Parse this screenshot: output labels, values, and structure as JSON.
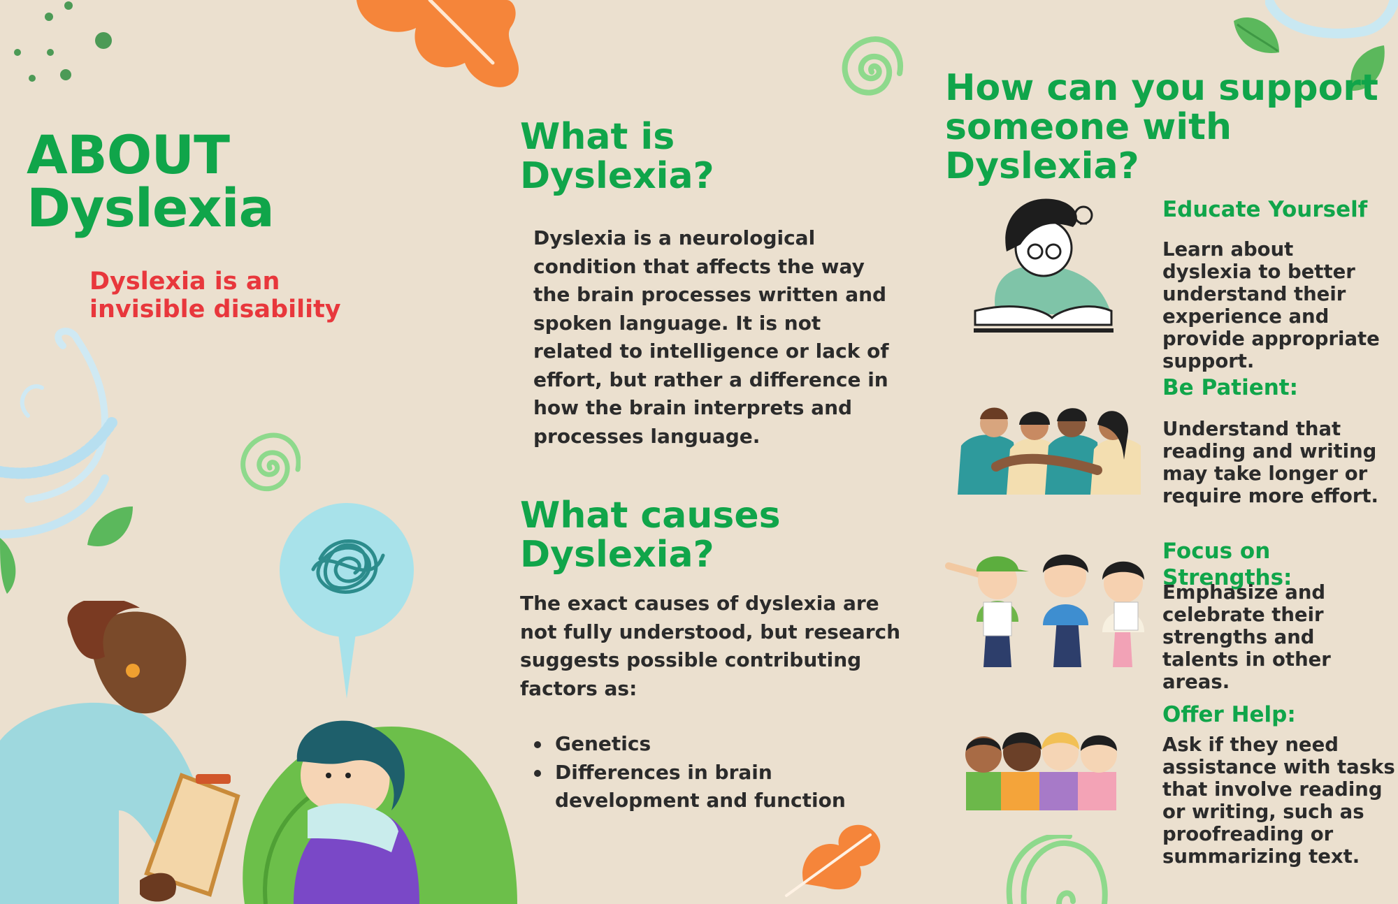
{
  "left_panel": {
    "title_line1": "ABOUT",
    "title_line2": "Dyslexia",
    "subtitle": "Dyslexia is an invisible disability"
  },
  "middle_panel": {
    "what_heading_line1": "What is",
    "what_heading_line2": "Dyslexia?",
    "what_body": "Dyslexia is a neurological condition that affects the way the brain processes written and spoken language. It is not related to intelligence or lack of effort, but rather a difference in how the brain interprets and processes language.",
    "causes_heading_line1": "What causes",
    "causes_heading_line2": "Dyslexia?",
    "causes_body": "The exact causes of dyslexia are not fully understood, but research suggests possible contributing factors as:",
    "causes_list": [
      "Genetics",
      "Differences in brain development and function"
    ]
  },
  "right_panel": {
    "heading_line1": "How can you support",
    "heading_line2": "someone with",
    "heading_line3": "Dyslexia?",
    "tips": [
      {
        "title": "Educate Yourself",
        "text": "Learn about dyslexia to better understand their experience and provide appropriate support."
      },
      {
        "title": "Be Patient:",
        "text": "Understand that reading and writing may take longer or require more effort."
      },
      {
        "title": "Focus on Strengths:",
        "text": "Emphasize and celebrate their strengths and talents in other areas."
      },
      {
        "title": "Offer Help:",
        "text": "Ask if they need assistance with tasks that involve reading or writing, such as proofreading or summarizing text."
      }
    ]
  },
  "colors": {
    "background": "#ebe0cf",
    "heading_green": "#10a54a",
    "accent_red": "#e8373c",
    "body_text": "#2b2b2b",
    "leaf_orange": "#f5853a",
    "spiral_green": "#8ed98c"
  },
  "icons": [
    "leaf-icon",
    "spiral-icon",
    "dots-icon",
    "swirl-icon",
    "scribble-bubble-icon",
    "reading-girl-illustration",
    "group-hug-illustration",
    "kids-cheering-illustration",
    "children-group-illustration",
    "teacher-student-illustration"
  ]
}
